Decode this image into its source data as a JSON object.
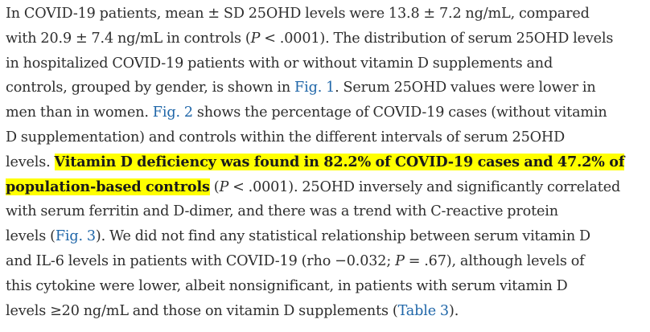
{
  "paragraph": {
    "l1": {
      "a": "In COVID-19 patients, mean ± SD 25OHD levels were 13.8 ± 7.2 ng/mL, compared"
    },
    "l2": {
      "a": "with 20.9 ± 7.4 ng/mL in controls (",
      "p": "P",
      "b": " < .0001). The distribution of serum 25OHD levels"
    },
    "l3": {
      "a": "in hospitalized COVID-19 patients with or without vitamin D supplements and"
    },
    "l4": {
      "a": "controls, grouped by gender, is shown in ",
      "link": "Fig. 1",
      "b": ". Serum 25OHD values were lower in"
    },
    "l5": {
      "a": "men than in women. ",
      "link": "Fig. 2",
      "b": " shows the percentage of COVID-19 cases (without vitamin"
    },
    "l6": {
      "a": "D supplementation) and controls within the different intervals of serum 25OHD"
    },
    "l7": {
      "a": "levels. ",
      "hl": "Vitamin D deficiency was found in 82.2% of COVID-19 cases and 47.2% of"
    },
    "l8": {
      "hl": "population-based controls",
      "a": " (",
      "p": "P",
      "b": " < .0001). 25OHD inversely and significantly correlated"
    },
    "l9": {
      "a": "with serum ferritin and D-dimer, and there was a trend with C-reactive protein"
    },
    "l10": {
      "a": "levels (",
      "link": "Fig. 3",
      "b": "). We did not find any statistical relationship between serum vitamin D"
    },
    "l11": {
      "a": "and IL-6 levels in patients with COVID-19 (rho −0.032; ",
      "p": "P",
      "b": " = .67), although levels of"
    },
    "l12": {
      "a": "this cytokine were lower, albeit nonsignificant, in patients with serum vitamin D"
    },
    "l13": {
      "a": "levels ≥20 ng/mL and those on vitamin D supplements (",
      "link": "Table 3",
      "b": ")."
    }
  },
  "colors": {
    "text": "#2e2e2e",
    "link": "#1f66a8",
    "highlight": "#ffff00"
  }
}
